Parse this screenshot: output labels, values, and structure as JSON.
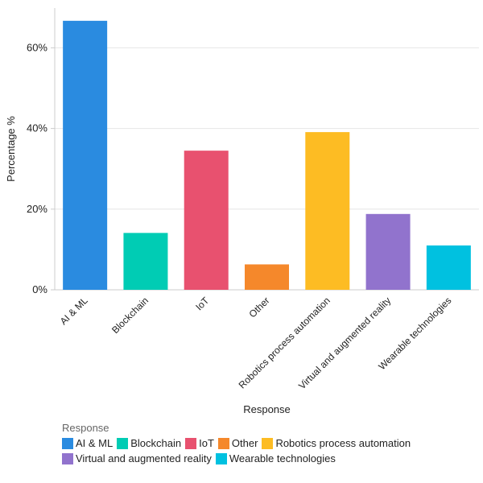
{
  "chart_data": {
    "type": "bar",
    "categories": [
      "AI & ML",
      "Blockchain",
      "IoT",
      "Other",
      "Robotics process automation",
      "Virtual and augmented reality",
      "Wearable technologies"
    ],
    "values": [
      66.7,
      14.1,
      34.5,
      6.3,
      39.1,
      18.8,
      11.0
    ],
    "colors": [
      "#2A8BE0",
      "#00CCB4",
      "#E8516F",
      "#F5882B",
      "#FDBC23",
      "#9173CD",
      "#00C1E0"
    ],
    "xlabel": "Response",
    "ylabel": "Percentage %",
    "ylim": [
      0,
      69
    ],
    "yticks": [
      0,
      20,
      40,
      60
    ],
    "ytick_labels": [
      "0%",
      "20%",
      "40%",
      "60%"
    ],
    "grid": true,
    "legend": {
      "title": "Response",
      "placement": "bottom-left"
    }
  }
}
